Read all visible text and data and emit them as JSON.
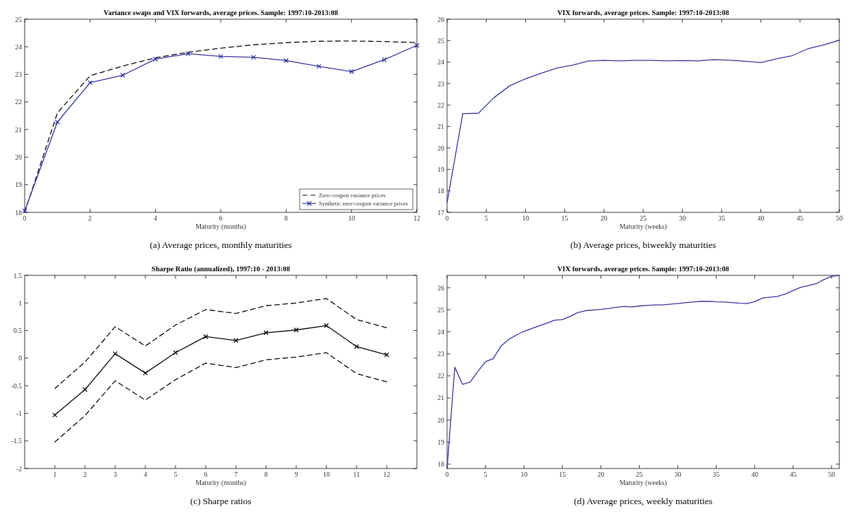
{
  "chart_data": [
    {
      "type": "line",
      "title": "Variance swaps and VIX forwards, average prices. Sample: 1997:10-2013:08",
      "xlabel": "Maturity (months)",
      "annotations": [
        "(a)  Average prices, monthly maturities"
      ],
      "x": [
        0,
        1,
        2,
        3,
        4,
        5,
        6,
        7,
        8,
        9,
        10,
        11,
        12
      ],
      "xlim": [
        0,
        12
      ],
      "xticks": [
        0,
        2,
        4,
        6,
        8,
        10,
        12
      ],
      "ylim": [
        18,
        25
      ],
      "yticks": [
        18,
        19,
        20,
        21,
        22,
        23,
        24,
        25
      ],
      "legend": "bottom right",
      "series": [
        {
          "name": "Zero-coupon variance prices",
          "color": "#000000",
          "line_style": "dashed",
          "marker": "none",
          "values": [
            18.0,
            21.6,
            22.95,
            23.3,
            23.6,
            23.8,
            23.95,
            24.07,
            24.15,
            24.2,
            24.21,
            24.19,
            24.15
          ]
        },
        {
          "name": "Synthetic zero-coupon variance prices",
          "color": "#2e2e9c",
          "line_style": "solid",
          "marker": "cross",
          "values": [
            18.05,
            21.27,
            22.7,
            22.97,
            23.55,
            23.75,
            23.65,
            23.62,
            23.5,
            23.29,
            23.1,
            23.53,
            24.05
          ]
        }
      ]
    },
    {
      "type": "line",
      "title": "VIX forwards, average prices. Sample: 1997:10-2013:08",
      "xlabel": "Maturity (weeks)",
      "annotations": [
        "(b)  Average prices, biweekly maturities"
      ],
      "x": [
        0,
        2,
        4,
        6,
        8,
        10,
        12,
        14,
        16,
        18,
        20,
        22,
        24,
        26,
        28,
        30,
        32,
        34,
        36,
        38,
        40,
        42,
        44,
        46,
        48,
        50
      ],
      "xlim": [
        0,
        50
      ],
      "xticks": [
        0,
        5,
        10,
        15,
        20,
        25,
        30,
        35,
        40,
        45,
        50
      ],
      "ylim": [
        17,
        26
      ],
      "yticks": [
        17,
        18,
        19,
        20,
        21,
        22,
        23,
        24,
        25,
        26
      ],
      "series": [
        {
          "color": "#2e2e9c",
          "values": [
            17.45,
            21.6,
            21.62,
            22.35,
            22.9,
            23.22,
            23.48,
            23.72,
            23.86,
            24.05,
            24.08,
            24.06,
            24.08,
            24.08,
            24.06,
            24.07,
            24.06,
            24.11,
            24.09,
            24.04,
            23.98,
            24.15,
            24.3,
            24.62,
            24.8,
            25.02
          ]
        }
      ]
    },
    {
      "type": "line",
      "title": "Sharpe Ratio (annualized), 1997:10 - 2013:08",
      "xlabel": "Maturity (months)",
      "annotations": [
        "(c)  Sharpe ratios"
      ],
      "x": [
        1,
        2,
        3,
        4,
        5,
        6,
        7,
        8,
        9,
        10,
        11,
        12
      ],
      "xlim": [
        0,
        13
      ],
      "xticks": [
        1,
        2,
        3,
        4,
        5,
        6,
        7,
        8,
        9,
        10,
        11,
        12
      ],
      "ylim": [
        -2,
        1.5
      ],
      "yticks": [
        -2,
        -1.5,
        -1,
        -0.5,
        0,
        0.5,
        1,
        1.5
      ],
      "series": [
        {
          "color": "#000000",
          "line_style": "solid",
          "marker": "cross",
          "values": [
            -1.03,
            -0.57,
            0.08,
            -0.27,
            0.1,
            0.39,
            0.32,
            0.46,
            0.51,
            0.59,
            0.21,
            0.06
          ]
        },
        {
          "color": "#000000",
          "line_style": "dashed",
          "marker": "none",
          "values": [
            -0.55,
            -0.07,
            0.57,
            0.22,
            0.6,
            0.88,
            0.81,
            0.95,
            1.0,
            1.08,
            0.7,
            0.55
          ]
        },
        {
          "color": "#000000",
          "line_style": "dashed",
          "marker": "none",
          "values": [
            -1.52,
            -1.04,
            -0.41,
            -0.76,
            -0.39,
            -0.09,
            -0.17,
            -0.03,
            0.02,
            0.1,
            -0.28,
            -0.43
          ]
        }
      ]
    },
    {
      "type": "line",
      "title": "VIX forwards, average prices. Sample: 1997:10-2013:08",
      "xlabel": "Maturity (weeks)",
      "annotations": [
        "(d)  Average prices, weekly maturities"
      ],
      "x": [
        0,
        1,
        2,
        3,
        4,
        5,
        6,
        7,
        8,
        9,
        10,
        11,
        12,
        13,
        14,
        15,
        16,
        17,
        18,
        19,
        20,
        21,
        22,
        23,
        24,
        25,
        26,
        27,
        28,
        29,
        30,
        31,
        32,
        33,
        34,
        35,
        36,
        37,
        38,
        39,
        40,
        41,
        42,
        43,
        44,
        45,
        46,
        47,
        48,
        49,
        50,
        51
      ],
      "xlim": [
        0,
        51
      ],
      "xticks": [
        0,
        5,
        10,
        15,
        20,
        25,
        30,
        35,
        40,
        45,
        50
      ],
      "ylim": [
        17.8,
        26.56
      ],
      "yticks": [
        18,
        19,
        20,
        21,
        22,
        23,
        24,
        25,
        26
      ],
      "series": [
        {
          "color": "#2e2e9c",
          "values": [
            17.8,
            22.4,
            21.62,
            21.72,
            22.2,
            22.65,
            22.78,
            23.35,
            23.65,
            23.85,
            24.02,
            24.15,
            24.27,
            24.4,
            24.53,
            24.55,
            24.7,
            24.87,
            24.96,
            24.99,
            25.02,
            25.06,
            25.11,
            25.15,
            25.13,
            25.17,
            25.2,
            25.22,
            25.22,
            25.25,
            25.28,
            25.32,
            25.35,
            25.38,
            25.38,
            25.36,
            25.35,
            25.33,
            25.3,
            25.28,
            25.37,
            25.53,
            25.57,
            25.61,
            25.72,
            25.87,
            26.02,
            26.1,
            26.18,
            26.37,
            26.52,
            26.56
          ]
        }
      ]
    }
  ]
}
